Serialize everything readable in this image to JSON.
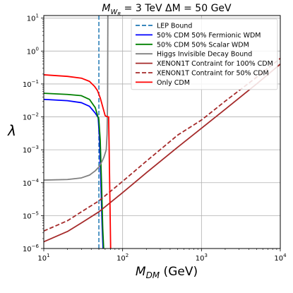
{
  "chart_data": {
    "type": "line",
    "title": {
      "prefix": "M",
      "sub1": "W",
      "sub2": "R",
      "suffix": " = 3 TeV  ΔM = 50 GeV"
    },
    "xlabel": {
      "prefix": "M",
      "sub": "DM",
      "suffix": " (GeV)"
    },
    "ylabel": "λ",
    "xscale": "log",
    "yscale": "log",
    "xlim": [
      10,
      10000
    ],
    "ylim": [
      1e-06,
      12
    ],
    "x_ticks": [
      {
        "value": 10,
        "base": "10",
        "exp": "1"
      },
      {
        "value": 100,
        "base": "10",
        "exp": "2"
      },
      {
        "value": 1000,
        "base": "10",
        "exp": "3"
      },
      {
        "value": 10000,
        "base": "10",
        "exp": "4"
      }
    ],
    "y_ticks": [
      {
        "value": 1e-06,
        "base": "10",
        "exp": "−6"
      },
      {
        "value": 1e-05,
        "base": "10",
        "exp": "−5"
      },
      {
        "value": 0.0001,
        "base": "10",
        "exp": "−4"
      },
      {
        "value": 0.001,
        "base": "10",
        "exp": "−3"
      },
      {
        "value": 0.01,
        "base": "10",
        "exp": "−2"
      },
      {
        "value": 0.1,
        "base": "10",
        "exp": "−1"
      },
      {
        "value": 1,
        "base": "10",
        "exp": "0"
      },
      {
        "value": 10,
        "base": "10",
        "exp": "1"
      }
    ],
    "grid": true,
    "legend_position": "top-right",
    "series": [
      {
        "name": "LEP Bound",
        "color": "#1f77b4",
        "dash": "dashed",
        "kind": "vline",
        "x": 50
      },
      {
        "name": "50% CDM 50% Fermionic WDM",
        "color": "#0000ff",
        "dash": "solid",
        "points": [
          [
            10,
            0.034
          ],
          [
            20,
            0.031
          ],
          [
            30,
            0.027
          ],
          [
            38,
            0.021
          ],
          [
            45,
            0.013
          ],
          [
            49,
            0.0095
          ],
          [
            51,
            0.002
          ],
          [
            53,
            0.0001
          ],
          [
            55,
            5e-06
          ],
          [
            56.5,
            1e-06
          ]
        ]
      },
      {
        "name": "50% CDM 50% Scalar WDM",
        "color": "#008000",
        "dash": "solid",
        "points": [
          [
            10,
            0.052
          ],
          [
            20,
            0.048
          ],
          [
            30,
            0.044
          ],
          [
            38,
            0.034
          ],
          [
            45,
            0.019
          ],
          [
            50,
            0.008
          ],
          [
            52,
            0.002
          ],
          [
            54,
            0.0001
          ],
          [
            56,
            4e-06
          ],
          [
            57.5,
            1e-06
          ]
        ]
      },
      {
        "name": "Higgs Invisible Decay Bound",
        "color": "#808080",
        "dash": "solid",
        "points": [
          [
            10,
            0.00012
          ],
          [
            20,
            0.000125
          ],
          [
            30,
            0.00014
          ],
          [
            38,
            0.00017
          ],
          [
            45,
            0.00023
          ],
          [
            50,
            0.0003
          ],
          [
            55,
            0.00045
          ],
          [
            58,
            0.0006
          ],
          [
            62,
            0.001
          ],
          [
            63.5,
            0.003
          ],
          [
            64.5,
            0.03
          ],
          [
            65,
            12
          ]
        ]
      },
      {
        "name": "XENON1T Contraint for 100% CDM",
        "color": "#a52a2a",
        "dash": "solid",
        "points": [
          [
            10,
            1.6e-06
          ],
          [
            20,
            3.3e-06
          ],
          [
            30,
            6e-06
          ],
          [
            50,
            1.3e-05
          ],
          [
            100,
            5e-05
          ],
          [
            200,
            0.0002
          ],
          [
            500,
            0.0012
          ],
          [
            1000,
            0.0045
          ],
          [
            2000,
            0.017
          ],
          [
            5000,
            0.1
          ],
          [
            10000,
            0.4
          ]
        ]
      },
      {
        "name": "XENON1T Contraint for 50% CDM",
        "color": "#a52a2a",
        "dash": "dashed",
        "points": [
          [
            10,
            3.4e-06
          ],
          [
            20,
            7e-06
          ],
          [
            30,
            1.3e-05
          ],
          [
            50,
            2.8e-05
          ],
          [
            100,
            0.00011
          ],
          [
            200,
            0.00045
          ],
          [
            500,
            0.0028
          ],
          [
            1000,
            0.008
          ],
          [
            2000,
            0.03
          ],
          [
            5000,
            0.16
          ],
          [
            10000,
            0.6
          ]
        ]
      },
      {
        "name": "Only CDM",
        "color": "#ff0000",
        "dash": "solid",
        "points": [
          [
            10,
            0.19
          ],
          [
            20,
            0.17
          ],
          [
            30,
            0.15
          ],
          [
            38,
            0.12
          ],
          [
            44,
            0.085
          ],
          [
            48,
            0.063
          ],
          [
            52,
            0.038
          ],
          [
            56,
            0.02
          ],
          [
            60,
            0.011
          ],
          [
            61.5,
            0.0105
          ],
          [
            63,
            0.0102
          ],
          [
            65,
            0.0101
          ],
          [
            66.5,
            0.01
          ],
          [
            67.5,
            0.001
          ],
          [
            68.5,
            0.0001
          ],
          [
            69.5,
            1e-05
          ],
          [
            70.5,
            1e-06
          ]
        ]
      }
    ]
  }
}
